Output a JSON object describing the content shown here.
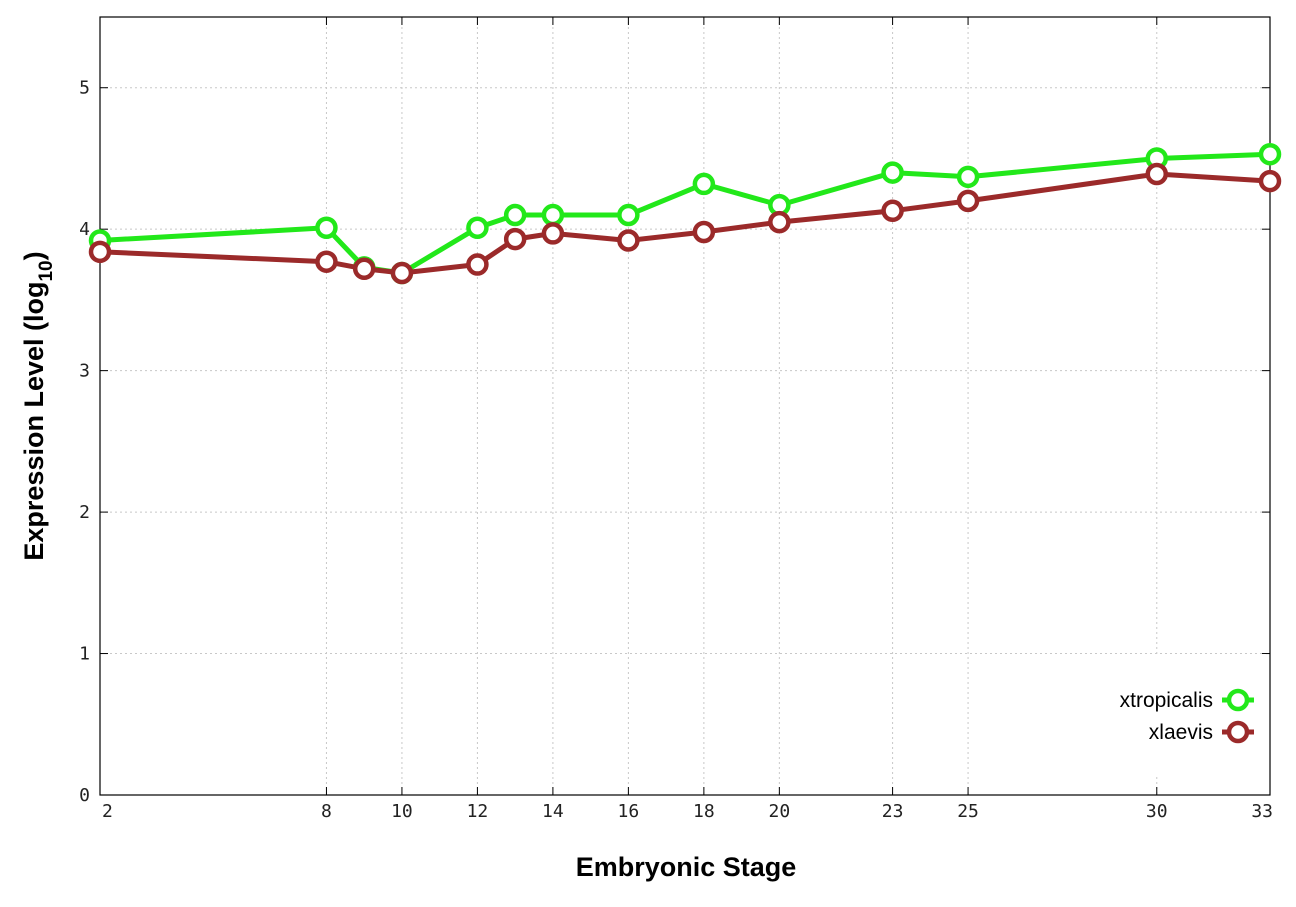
{
  "chart_data": {
    "type": "line",
    "title": "",
    "xlabel": "Embryonic Stage",
    "ylabel_main": "Expression Level (log",
    "ylabel_sub": "10",
    "ylabel_close": ")",
    "xlim": [
      2,
      33
    ],
    "ylim": [
      0,
      5.5
    ],
    "x_ticks": [
      2,
      8,
      10,
      12,
      14,
      16,
      18,
      20,
      23,
      25,
      30,
      33
    ],
    "x_tick_labels": [
      "2",
      "8",
      "10",
      "12",
      "14",
      "16",
      "18",
      "20",
      "23",
      "25",
      "30",
      "33"
    ],
    "y_ticks": [
      0,
      1,
      2,
      3,
      4,
      5
    ],
    "y_tick_labels": [
      "0",
      "1",
      "2",
      "3",
      "4",
      "5"
    ],
    "grid": true,
    "legend_position": "bottom-right",
    "x": [
      2,
      8,
      9,
      10,
      12,
      13,
      14,
      16,
      18,
      20,
      23,
      25,
      30,
      33
    ],
    "series": [
      {
        "name": "xtropicalis",
        "color": "#22e81a",
        "values": [
          3.92,
          4.01,
          3.73,
          3.69,
          4.01,
          4.1,
          4.1,
          4.1,
          4.32,
          4.17,
          4.4,
          4.37,
          4.5,
          4.53
        ]
      },
      {
        "name": "xlaevis",
        "color": "#9b2a2a",
        "values": [
          3.84,
          3.77,
          3.72,
          3.69,
          3.75,
          3.93,
          3.97,
          3.92,
          3.98,
          4.05,
          4.13,
          4.2,
          4.39,
          4.34
        ]
      }
    ]
  }
}
